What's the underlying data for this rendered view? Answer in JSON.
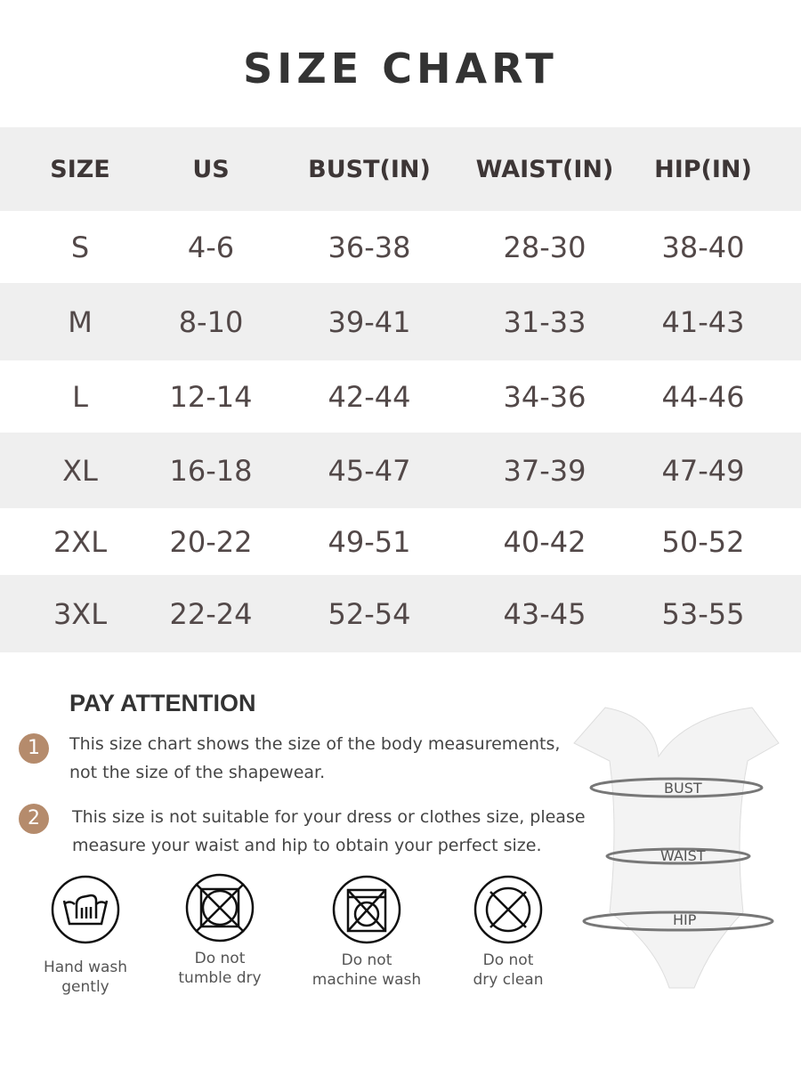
{
  "title": "SIZE CHART",
  "table": {
    "headers": [
      "SIZE",
      "US",
      "BUST(IN)",
      "WAIST(IN)",
      "HIP(IN)"
    ],
    "rows": [
      [
        "S",
        "4-6",
        "36-38",
        "28-30",
        "38-40"
      ],
      [
        "M",
        "8-10",
        "39-41",
        "31-33",
        "41-43"
      ],
      [
        "L",
        "12-14",
        "42-44",
        "34-36",
        "44-46"
      ],
      [
        "XL",
        "16-18",
        "45-47",
        "37-39",
        "47-49"
      ],
      [
        "2XL",
        "20-22",
        "49-51",
        "40-42",
        "50-52"
      ],
      [
        "3XL",
        "22-24",
        "52-54",
        "43-45",
        "53-55"
      ]
    ]
  },
  "attention": {
    "heading": "PAY ATTENTION",
    "notes": [
      {
        "num": "1",
        "line1": "This size chart shows the size of the body measurements,",
        "line2": "not the size of the shapewear."
      },
      {
        "num": "2",
        "line1": "This size is not suitable for your dress or clothes size, please",
        "line2": "measure your waist and hip to obtain your perfect size."
      }
    ]
  },
  "care": [
    {
      "icon": "hand-wash-icon",
      "line1": "Hand wash",
      "line2": "gently"
    },
    {
      "icon": "no-tumble-dry-icon",
      "line1": "Do not",
      "line2": "tumble dry"
    },
    {
      "icon": "no-machine-wash-icon",
      "line1": "Do not",
      "line2": "machine wash"
    },
    {
      "icon": "no-dry-clean-icon",
      "line1": "Do not",
      "line2": "dry clean"
    }
  ],
  "figure": {
    "bust": "BUST",
    "waist": "WAIST",
    "hip": "HIP"
  },
  "colors": {
    "badge": "#b58b6c",
    "stripe": "#efefef",
    "text": "#4b4343"
  }
}
